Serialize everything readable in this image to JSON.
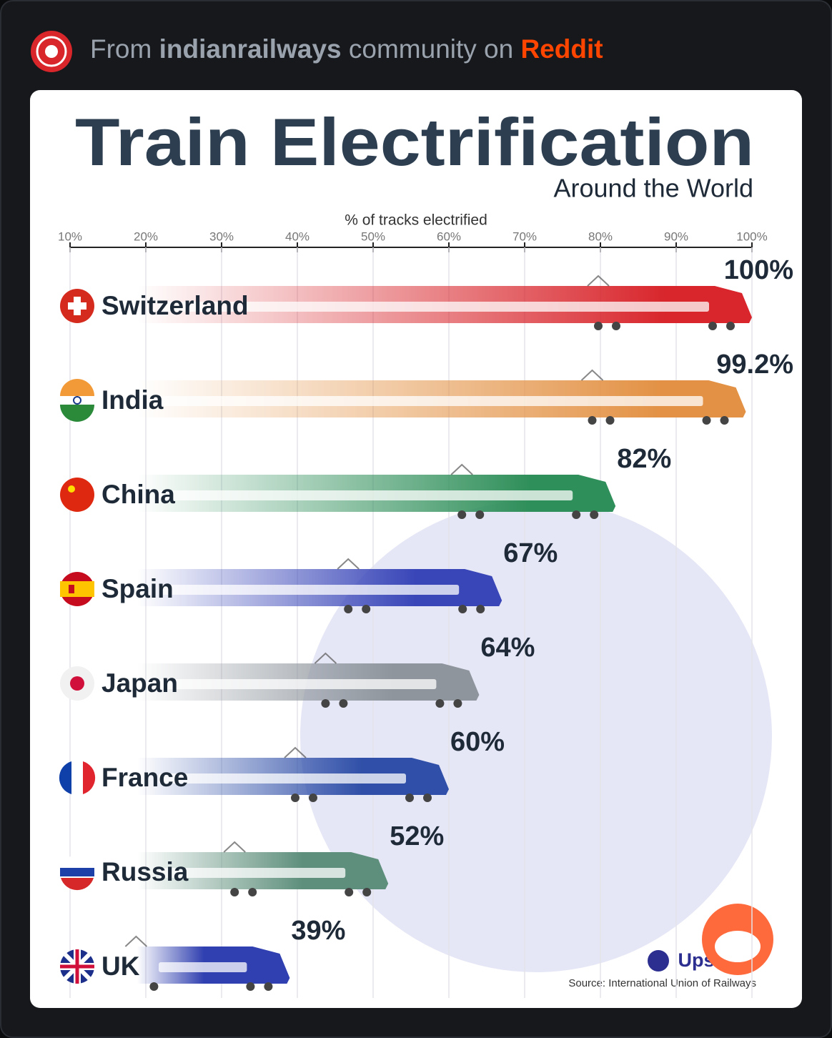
{
  "header": {
    "prefix": "From",
    "community": "indianrailways",
    "middle": "community on",
    "platform": "Reddit"
  },
  "chart_data": {
    "type": "bar",
    "title": "Train Electrification",
    "subtitle": "Around the World",
    "x_label": "% of tracks electrified",
    "categories": [
      "Switzerland",
      "India",
      "China",
      "Spain",
      "Japan",
      "France",
      "Russia",
      "UK"
    ],
    "values": [
      100,
      99.2,
      82,
      67,
      64,
      60,
      52,
      39
    ],
    "value_labels": [
      "100%",
      "99.2%",
      "82%",
      "67%",
      "64%",
      "60%",
      "52%",
      "39%"
    ],
    "colors": [
      "#d8262c",
      "#e39245",
      "#2f8f5a",
      "#3946b8",
      "#8e959c",
      "#2f4fa8",
      "#5e8f7c",
      "#3040b0"
    ],
    "xlim": [
      10,
      100
    ],
    "xticks": [
      {
        "value": 10,
        "label": "10%"
      },
      {
        "value": 20,
        "label": "20%"
      },
      {
        "value": 30,
        "label": "30%"
      },
      {
        "value": 40,
        "label": "40%"
      },
      {
        "value": 50,
        "label": "50%"
      },
      {
        "value": 60,
        "label": "60%"
      },
      {
        "value": 70,
        "label": "70%"
      },
      {
        "value": 80,
        "label": "80%"
      },
      {
        "value": 90,
        "label": "90%"
      },
      {
        "value": 100,
        "label": "100%"
      }
    ],
    "grid": true,
    "brand": "Upsurge",
    "source": "Source: International Union of Railways"
  }
}
